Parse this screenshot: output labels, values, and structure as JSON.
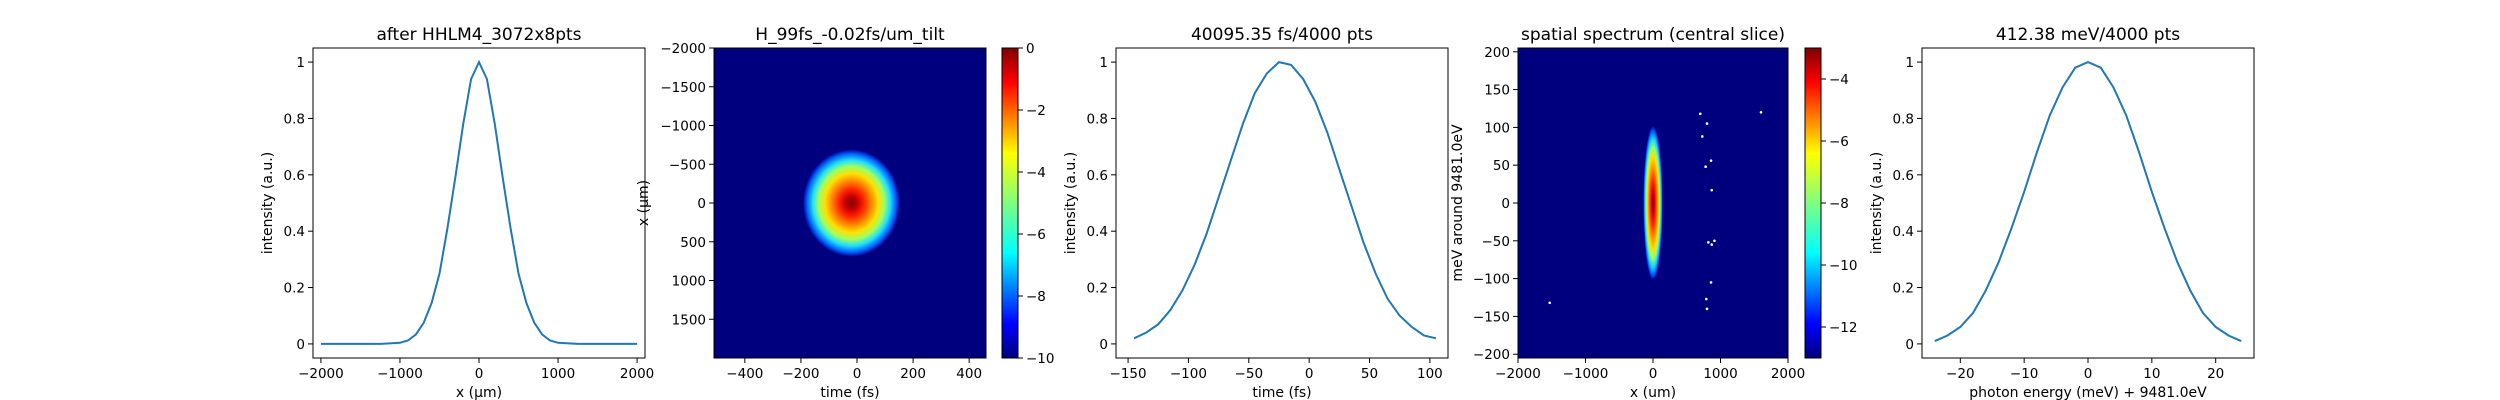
{
  "chart_data": [
    {
      "type": "line",
      "title": "after HHLM4_3072x8pts",
      "xlabel": "x (μm)",
      "ylabel": "intensity (a.u.)",
      "xlim": [
        -2100,
        2100
      ],
      "ylim": [
        -0.05,
        1.05
      ],
      "xticks": [
        -2000,
        -1000,
        0,
        1000,
        2000
      ],
      "yticks": [
        0.0,
        0.2,
        0.4,
        0.6,
        0.8,
        1.0
      ],
      "series": [
        {
          "x": [
            -2000,
            -1750,
            -1500,
            -1250,
            -1000,
            -900,
            -800,
            -700,
            -600,
            -500,
            -400,
            -300,
            -200,
            -100,
            0,
            100,
            200,
            300,
            400,
            500,
            600,
            700,
            800,
            900,
            1000,
            1250,
            1500,
            1750,
            2000
          ],
          "values": [
            0.0,
            0.0,
            0.0,
            0.0,
            0.004,
            0.012,
            0.033,
            0.075,
            0.145,
            0.25,
            0.41,
            0.59,
            0.78,
            0.94,
            1.0,
            0.94,
            0.78,
            0.59,
            0.41,
            0.25,
            0.145,
            0.075,
            0.033,
            0.012,
            0.004,
            0.0,
            0.0,
            0.0,
            0.0
          ],
          "color": "#1f77b4"
        }
      ]
    },
    {
      "type": "heatmap",
      "title": "H_99fs_-0.02fs/um_tilt",
      "xlabel": "time (fs)",
      "ylabel": "x (μm)",
      "xlim": [
        -510,
        460
      ],
      "ylim": [
        -2000,
        2000
      ],
      "xticks": [
        -400,
        -200,
        0,
        200,
        400
      ],
      "yticks": [
        -2000,
        -1500,
        -1000,
        -500,
        0,
        500,
        1000,
        1500
      ],
      "y_inverted": true,
      "ellipse": {
        "center_t": -20,
        "center_x": 0,
        "sigma_t": 115,
        "sigma_x": 460
      },
      "colorbar": {
        "ticks": [
          0,
          -2,
          -4,
          -6,
          -8,
          -10
        ],
        "range": [
          -10,
          0
        ]
      },
      "colormap": "jet"
    },
    {
      "type": "line",
      "title": "40095.35 fs/4000 pts",
      "xlabel": "time (fs)",
      "ylabel": "intensity (a.u.)",
      "xlim": [
        -160,
        115
      ],
      "ylim": [
        -0.05,
        1.05
      ],
      "xticks": [
        -150,
        -100,
        -50,
        0,
        50,
        100
      ],
      "yticks": [
        0.0,
        0.2,
        0.4,
        0.6,
        0.8,
        1.0
      ],
      "series": [
        {
          "x": [
            -145,
            -135,
            -125,
            -115,
            -105,
            -95,
            -85,
            -75,
            -65,
            -55,
            -45,
            -35,
            -25,
            -15,
            -5,
            5,
            15,
            25,
            35,
            45,
            55,
            65,
            75,
            85,
            95,
            105
          ],
          "values": [
            0.02,
            0.04,
            0.07,
            0.12,
            0.19,
            0.28,
            0.39,
            0.52,
            0.65,
            0.78,
            0.89,
            0.96,
            1.0,
            0.99,
            0.94,
            0.86,
            0.75,
            0.62,
            0.49,
            0.36,
            0.25,
            0.16,
            0.1,
            0.06,
            0.03,
            0.02
          ],
          "color": "#1f77b4"
        }
      ]
    },
    {
      "type": "heatmap",
      "title": "spatial spectrum (central slice)",
      "xlabel": "x (um)",
      "ylabel": "meV around 9481.0eV",
      "xlim": [
        -2000,
        2000
      ],
      "ylim": [
        -205,
        205
      ],
      "xticks": [
        -2000,
        -1000,
        0,
        1000,
        2000
      ],
      "yticks": [
        200,
        150,
        100,
        50,
        0,
        -50,
        -100,
        -150,
        -200
      ],
      "ellipse": {
        "center_x": 0,
        "center_e": 0,
        "sigma_x": 120,
        "sigma_e": 85
      },
      "colorbar": {
        "ticks": [
          -4,
          -6,
          -8,
          -10,
          -12
        ],
        "range": [
          -13,
          -3
        ]
      },
      "colormap": "jet",
      "speckles": [
        [
          -1530,
          -132
        ],
        [
          700,
          118
        ],
        [
          730,
          88
        ],
        [
          800,
          105
        ],
        [
          780,
          48
        ],
        [
          860,
          56
        ],
        [
          870,
          17
        ],
        [
          820,
          -52
        ],
        [
          870,
          -55
        ],
        [
          910,
          -50
        ],
        [
          860,
          -105
        ],
        [
          790,
          -127
        ],
        [
          800,
          -140
        ],
        [
          1600,
          120
        ]
      ]
    },
    {
      "type": "line",
      "title": "412.38 meV/4000 pts",
      "xlabel": "photon energy (meV) + 9481.0eV",
      "ylabel": "intensity (a.u.)",
      "xlim": [
        -26,
        26
      ],
      "ylim": [
        -0.05,
        1.05
      ],
      "xticks": [
        -20,
        -10,
        0,
        10,
        20
      ],
      "yticks": [
        0.0,
        0.2,
        0.4,
        0.6,
        0.8,
        1.0
      ],
      "series": [
        {
          "x": [
            -24,
            -22,
            -20,
            -18,
            -16,
            -14,
            -12,
            -10,
            -8,
            -6,
            -4,
            -2,
            0,
            2,
            4,
            6,
            8,
            10,
            12,
            14,
            16,
            18,
            20,
            22,
            24
          ],
          "values": [
            0.01,
            0.03,
            0.06,
            0.11,
            0.19,
            0.29,
            0.41,
            0.54,
            0.68,
            0.81,
            0.91,
            0.98,
            1.0,
            0.98,
            0.91,
            0.81,
            0.68,
            0.54,
            0.41,
            0.29,
            0.19,
            0.11,
            0.06,
            0.03,
            0.01
          ],
          "color": "#1f77b4"
        }
      ]
    }
  ]
}
